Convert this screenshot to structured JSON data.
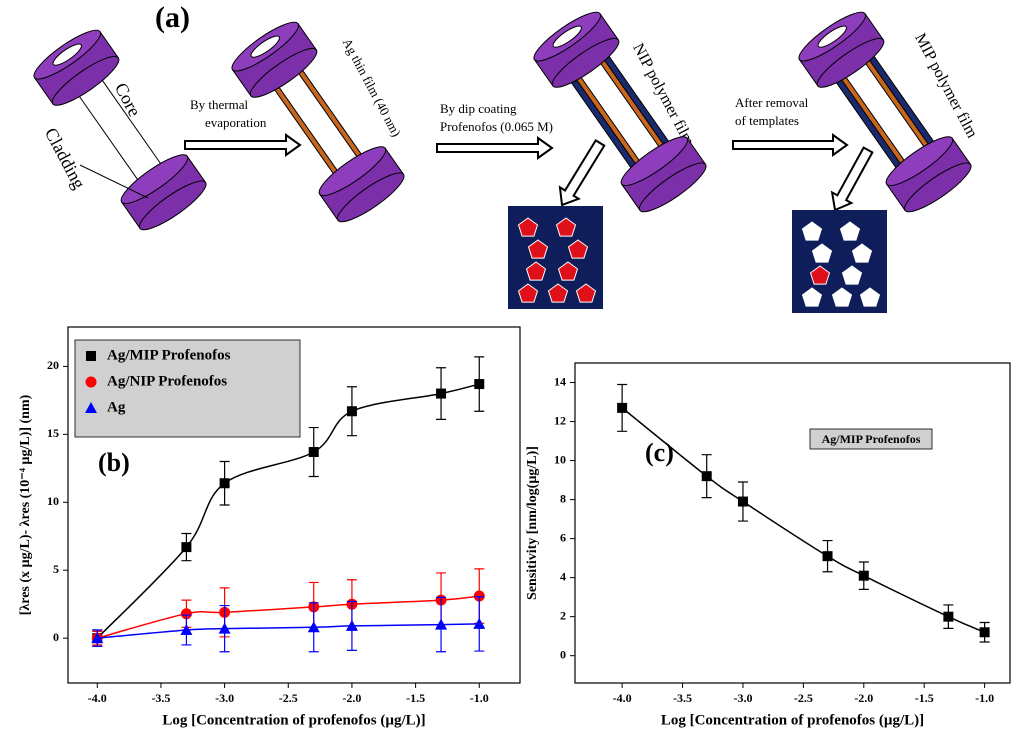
{
  "diagram": {
    "panel_label": "(a)",
    "core": "Core",
    "cladding": "Cladding",
    "ag_film": "Ag thin film (40 nm)",
    "nip_film": "NIP polymer film",
    "mip_film": "MIP polymer film",
    "step1": [
      "By thermal",
      "evaporation"
    ],
    "step2": [
      "By dip coating",
      "Profenofos (0.065 M)"
    ],
    "step3": [
      "After removal",
      "of templates"
    ]
  },
  "chart_data": [
    {
      "type": "scatter",
      "panel_label": "(b)",
      "x_label": "Log [Concentration of profenofos (µg/L)]",
      "y_label": "[λres (x µg/L)- λres (10⁻⁴ µg/L)] (nm)",
      "x": [
        -4,
        -3.3,
        -3,
        -2.3,
        -2,
        -1.3,
        -1
      ],
      "xlim": [
        -4.23,
        -0.68
      ],
      "ylim": [
        -3.3,
        22.9
      ],
      "xticks": [
        {
          "value": -4,
          "label": "-4.0"
        },
        {
          "value": -3.5,
          "label": "-3.5"
        },
        {
          "value": -3,
          "label": "-3.0"
        },
        {
          "value": -2.5,
          "label": "-2.5"
        },
        {
          "value": -2,
          "label": "-2.0"
        },
        {
          "value": -1.5,
          "label": "-1.5"
        },
        {
          "value": -1,
          "label": "-1.0"
        }
      ],
      "yticks": [
        0,
        5,
        10,
        15,
        20
      ],
      "legend": "upper left",
      "series": [
        {
          "name": "Ag/MIP Profenofos",
          "color": "#000000",
          "marker": "square",
          "values": [
            0,
            6.7,
            11.4,
            13.7,
            16.7,
            18.0,
            18.7
          ],
          "errors": [
            0.6,
            1.0,
            1.6,
            1.8,
            1.8,
            1.9,
            2.0
          ]
        },
        {
          "name": "Ag/NIP Profenofos",
          "color": "#ff0000",
          "marker": "circle",
          "values": [
            0,
            1.8,
            1.9,
            2.3,
            2.5,
            2.8,
            3.1
          ],
          "errors": [
            0.5,
            1.0,
            1.8,
            1.8,
            1.8,
            2.0,
            2.0
          ]
        },
        {
          "name": "Ag",
          "color": "#0000ff",
          "marker": "triangle",
          "values": [
            0,
            0.6,
            0.7,
            0.8,
            0.9,
            1.0,
            1.05
          ],
          "errors": [
            0.6,
            1.1,
            1.7,
            1.8,
            1.8,
            2.0,
            2.0
          ]
        }
      ]
    },
    {
      "type": "scatter",
      "panel_label": "(c)",
      "x_label": "Log [Concentration of profenofos (µg/L)]",
      "y_label": "Sensitivity [nm/log(µg/L)]",
      "annotation": "Ag/MIP Profenofos",
      "x": [
        -4,
        -3.3,
        -3,
        -2.3,
        -2,
        -1.3,
        -1
      ],
      "xlim": [
        -4.39,
        -0.79
      ],
      "ylim": [
        -1.4,
        15
      ],
      "xticks": [
        {
          "value": -4,
          "label": "-4.0"
        },
        {
          "value": -3.5,
          "label": "-3.5"
        },
        {
          "value": -3,
          "label": "-3.0"
        },
        {
          "value": -2.5,
          "label": "-2.5"
        },
        {
          "value": -2,
          "label": "-2.0"
        },
        {
          "value": -1.5,
          "label": "-1.5"
        },
        {
          "value": -1,
          "label": "-1.0"
        }
      ],
      "yticks": [
        0,
        2,
        4,
        6,
        8,
        10,
        12,
        14
      ],
      "series": [
        {
          "color": "#000000",
          "marker": "square",
          "values": [
            12.7,
            9.2,
            7.9,
            5.1,
            4.1,
            2.0,
            1.2
          ],
          "errors": [
            1.2,
            1.1,
            1.0,
            0.8,
            0.7,
            0.6,
            0.5
          ]
        }
      ]
    }
  ]
}
